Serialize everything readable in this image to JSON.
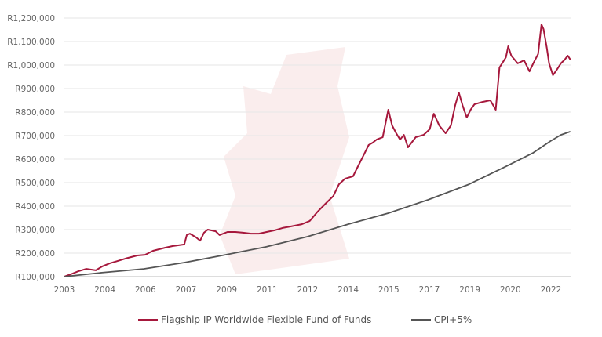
{
  "chart_data": {
    "type": "line",
    "title": "",
    "xlabel": "",
    "ylabel": "",
    "ylim": [
      100000,
      1200000
    ],
    "xlim": [
      2003.0,
      2022.8
    ],
    "grid": "horizontal",
    "legend_placement": "bottom",
    "y_ticks": [
      "R100,000",
      "R200,000",
      "R300,000",
      "R400,000",
      "R500,000",
      "R600,000",
      "R700,000",
      "R800,000",
      "R900,000",
      "R1,000,000",
      "R1,100,000",
      "R1,200,000"
    ],
    "x_ticks": [
      "2003",
      "2004",
      "2006",
      "2007",
      "2009",
      "2011",
      "2012",
      "2014",
      "2015",
      "2017",
      "2019",
      "2020",
      "2022"
    ],
    "watermark_color": "#f6dede",
    "series": [
      {
        "name": "Flagship IP Worldwide Flexible Fund of Funds",
        "color": "#a6183c",
        "x": [
          2003.0,
          2003.25,
          2003.55,
          2003.86,
          2004.23,
          2004.47,
          2004.78,
          2005.09,
          2005.39,
          2005.85,
          2006.16,
          2006.47,
          2006.93,
          2007.23,
          2007.69,
          2007.79,
          2007.91,
          2008.15,
          2008.31,
          2008.46,
          2008.61,
          2008.92,
          2009.07,
          2009.38,
          2009.69,
          2009.99,
          2010.3,
          2010.61,
          2010.91,
          2011.22,
          2011.53,
          2011.83,
          2012.29,
          2012.6,
          2012.91,
          2013.21,
          2013.52,
          2013.74,
          2013.98,
          2014.29,
          2014.44,
          2014.75,
          2014.9,
          2015.06,
          2015.21,
          2015.45,
          2015.67,
          2015.82,
          2015.98,
          2016.13,
          2016.28,
          2016.44,
          2016.74,
          2017.05,
          2017.29,
          2017.45,
          2017.66,
          2017.91,
          2018.12,
          2018.28,
          2018.43,
          2018.58,
          2018.74,
          2018.89,
          2019.04,
          2019.35,
          2019.66,
          2019.87,
          2020.02,
          2020.12,
          2020.27,
          2020.36,
          2020.48,
          2020.73,
          2020.98,
          2021.19,
          2021.34,
          2021.53,
          2021.66,
          2021.74,
          2021.87,
          2021.96,
          2022.11,
          2022.26,
          2022.42,
          2022.57,
          2022.69,
          2022.79
        ],
        "values": [
          100000,
          110000,
          123000,
          133000,
          127000,
          143000,
          157000,
          167000,
          177000,
          190000,
          193000,
          210000,
          223000,
          230000,
          237000,
          277000,
          283000,
          267000,
          253000,
          287000,
          300000,
          293000,
          277000,
          290000,
          290000,
          287000,
          283000,
          283000,
          290000,
          297000,
          307000,
          313000,
          323000,
          337000,
          377000,
          410000,
          443000,
          493000,
          517000,
          527000,
          560000,
          627000,
          660000,
          670000,
          683000,
          693000,
          810000,
          743000,
          710000,
          683000,
          703000,
          650000,
          693000,
          703000,
          727000,
          793000,
          743000,
          710000,
          743000,
          827000,
          883000,
          827000,
          777000,
          810000,
          833000,
          843000,
          850000,
          810000,
          990000,
          1007000,
          1033000,
          1080000,
          1040000,
          1007000,
          1020000,
          973000,
          1007000,
          1047000,
          1173000,
          1153000,
          1073000,
          1007000,
          957000,
          980000,
          1007000,
          1023000,
          1040000,
          1023000
        ]
      },
      {
        "name": "CPI+5%",
        "color": "#555555",
        "x": [
          2003.0,
          2004.47,
          2006.1,
          2007.7,
          2009.3,
          2010.9,
          2012.5,
          2014.1,
          2015.67,
          2017.23,
          2018.83,
          2020.42,
          2021.34,
          2022.02,
          2022.42,
          2022.79
        ],
        "values": [
          100000,
          117000,
          133000,
          160000,
          193000,
          227000,
          270000,
          323000,
          370000,
          427000,
          493000,
          577000,
          627000,
          677000,
          703000,
          717000
        ]
      }
    ]
  }
}
